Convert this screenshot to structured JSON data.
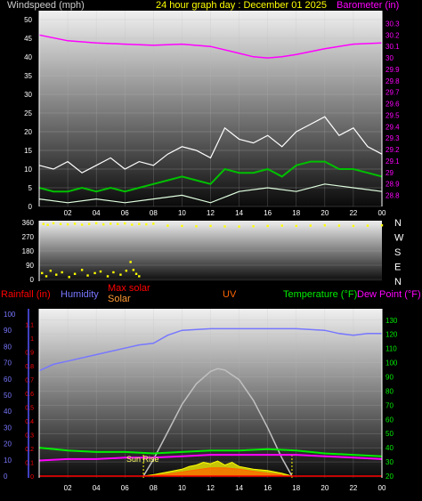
{
  "chart_data": [
    {
      "type": "line",
      "panel": "wind-barometer",
      "title": "24 hour graph day : December 01 2025",
      "ylabel": "Windspeed (mph)",
      "y2label": "Barometer (in)",
      "x_ticks": [
        "02",
        "04",
        "06",
        "08",
        "10",
        "12",
        "14",
        "16",
        "18",
        "20",
        "22",
        "00"
      ],
      "x_range_hours": [
        0,
        24
      ],
      "y_ticks": [
        "0",
        "5",
        "10",
        "15",
        "20",
        "25",
        "30",
        "35",
        "40",
        "45",
        "50"
      ],
      "ylim": [
        0,
        50
      ],
      "y2_ticks": [
        "28.8",
        "28.9",
        "29",
        "29.1",
        "29.2",
        "29.3",
        "29.4",
        "29.5",
        "29.6",
        "29.7",
        "29.8",
        "29.9",
        "30",
        "30.1",
        "30.2",
        "30.3"
      ],
      "y2lim": [
        28.75,
        30.35
      ],
      "series": [
        {
          "name": "Barometer (in)",
          "axis": "right",
          "color": "#ff00ff",
          "x": [
            0,
            2,
            4,
            6,
            8,
            10,
            12,
            14,
            15,
            16,
            17,
            18,
            20,
            22,
            24
          ],
          "values": [
            30.2,
            30.15,
            30.13,
            30.12,
            30.11,
            30.12,
            30.1,
            30.04,
            30.01,
            30.0,
            30.01,
            30.03,
            30.08,
            30.12,
            30.13
          ]
        },
        {
          "color": "#ffffff",
          "role": "gust",
          "x": [
            0,
            1,
            2,
            3,
            4,
            5,
            6,
            7,
            8,
            9,
            10,
            11,
            12,
            13,
            14,
            15,
            16,
            17,
            18,
            19,
            20,
            21,
            22,
            23,
            24
          ],
          "values": [
            11,
            10,
            12,
            9,
            11,
            13,
            10,
            12,
            11,
            14,
            16,
            15,
            13,
            21,
            18,
            17,
            19,
            16,
            20,
            22,
            24,
            19,
            21,
            16,
            14
          ]
        },
        {
          "color": "#00c000",
          "role": "average",
          "x": [
            0,
            1,
            2,
            3,
            4,
            5,
            6,
            7,
            8,
            9,
            10,
            11,
            12,
            13,
            14,
            15,
            16,
            17,
            18,
            19,
            20,
            21,
            22,
            23,
            24
          ],
          "values": [
            5,
            4,
            4,
            5,
            4,
            5,
            4,
            5,
            6,
            7,
            8,
            7,
            6,
            10,
            9,
            9,
            10,
            8,
            11,
            12,
            12,
            10,
            10,
            9,
            8
          ]
        },
        {
          "color": "#e0ffe0",
          "role": "min",
          "x": [
            0,
            2,
            4,
            6,
            8,
            10,
            12,
            14,
            16,
            18,
            20,
            22,
            24
          ],
          "values": [
            2,
            1,
            2,
            1,
            2,
            3,
            1,
            4,
            5,
            4,
            6,
            5,
            4
          ]
        }
      ]
    },
    {
      "type": "scatter",
      "panel": "wind-direction",
      "y_ticks": [
        "360",
        "270",
        "180",
        "90",
        "0"
      ],
      "ylim": [
        0,
        360
      ],
      "compass_labels": [
        "N",
        "W",
        "S",
        "E",
        "N"
      ],
      "series": [
        {
          "color": "#ffff00",
          "x": [
            0.3,
            0.6,
            1,
            1.5,
            2,
            2.5,
            3,
            3.5,
            4,
            4.5,
            5,
            5.5,
            6,
            6.5,
            7,
            7.5,
            8,
            9,
            10,
            11,
            12,
            13,
            14,
            15,
            16,
            17,
            18,
            19,
            20,
            21,
            22,
            23,
            24
          ],
          "values": [
            350,
            345,
            355,
            350,
            348,
            352,
            346,
            350,
            355,
            348,
            352,
            350,
            354,
            346,
            350,
            348,
            352,
            340,
            338,
            336,
            338,
            335,
            334,
            336,
            338,
            340,
            338,
            340,
            342,
            340,
            338,
            340,
            342
          ]
        },
        {
          "color": "#ffff00",
          "role": "scatter-low",
          "x": [
            0.2,
            0.5,
            0.8,
            1.2,
            1.6,
            2.1,
            2.5,
            3,
            3.4,
            3.9,
            4.3,
            4.8,
            5.2,
            5.7,
            6.1,
            6.4,
            6.6,
            6.8,
            7
          ],
          "values": [
            40,
            20,
            55,
            30,
            45,
            15,
            35,
            60,
            25,
            40,
            50,
            20,
            45,
            30,
            55,
            110,
            60,
            35,
            20
          ]
        }
      ]
    },
    {
      "type": "line",
      "panel": "temp-humidity-solar",
      "legend": [
        "Rainfall (in)",
        "Humidity",
        "Max solar",
        "Solar",
        "UV",
        "Temperature (°F)",
        "Dew Point (°F)"
      ],
      "left_ticks": [
        "0",
        "0.1",
        "0.2",
        "0.3",
        "0.4",
        "0.5",
        "0.6",
        "0.7",
        "0.8",
        "0.9",
        "1",
        "1.1"
      ],
      "left_range": [
        0,
        1.15
      ],
      "humidity_ticks": [
        "0",
        "10",
        "20",
        "30",
        "40",
        "50",
        "60",
        "70",
        "80",
        "90",
        "100"
      ],
      "humidity_range": [
        0,
        100
      ],
      "right_ticks": [
        "20",
        "30",
        "40",
        "50",
        "60",
        "70",
        "80",
        "90",
        "100",
        "110",
        "120",
        "130"
      ],
      "right_range": [
        20,
        133
      ],
      "x_ticks": [
        "02",
        "04",
        "06",
        "08",
        "10",
        "12",
        "14",
        "16",
        "18",
        "20",
        "22",
        "00"
      ],
      "annotation": "Sun Rise",
      "sunrise_hour": 7.3,
      "sunset_hour": 17.7,
      "series": [
        {
          "name": "Humidity",
          "axis": "humidity",
          "color": "#7777ff",
          "x": [
            0,
            1,
            2,
            4,
            6,
            7,
            8,
            9,
            10,
            12,
            14,
            16,
            18,
            20,
            21,
            22,
            23,
            24
          ],
          "values": [
            65,
            69,
            71,
            75,
            79,
            81,
            82,
            87,
            90,
            91,
            91,
            91,
            91,
            90,
            88,
            87,
            88,
            88
          ]
        },
        {
          "name": "Max solar",
          "axis": "left",
          "color": "#c0c0c0",
          "x": [
            7.3,
            8,
            9,
            10,
            11,
            12,
            12.5,
            13,
            14,
            15,
            16,
            17,
            17.7
          ],
          "values": [
            0,
            0.12,
            0.32,
            0.52,
            0.67,
            0.76,
            0.78,
            0.77,
            0.7,
            0.55,
            0.35,
            0.13,
            0
          ]
        },
        {
          "name": "Temperature (°F)",
          "axis": "right",
          "color": "#00ee00",
          "x": [
            0,
            2,
            4,
            6,
            8,
            10,
            12,
            14,
            16,
            18,
            20,
            22,
            24
          ],
          "values": [
            40,
            38,
            37,
            37,
            36,
            37,
            38,
            38,
            39,
            38,
            36,
            35,
            34
          ]
        },
        {
          "name": "Dew Point (°F)",
          "axis": "right",
          "color": "#ff00ff",
          "x": [
            0,
            2,
            4,
            6,
            8,
            10,
            12,
            14,
            16,
            18,
            20,
            22,
            24
          ],
          "values": [
            31,
            32,
            32,
            33,
            33,
            34,
            35,
            35,
            35,
            35,
            34,
            33,
            32
          ]
        },
        {
          "name": "Solar",
          "axis": "left",
          "color": "#ffff00",
          "x": [
            7.3,
            8,
            9,
            10,
            10.5,
            11,
            11.5,
            12,
            12.5,
            13,
            13.5,
            14,
            15,
            16,
            17,
            17.7
          ],
          "values": [
            0,
            0.01,
            0.03,
            0.05,
            0.07,
            0.08,
            0.1,
            0.09,
            0.11,
            0.08,
            0.1,
            0.07,
            0.05,
            0.04,
            0.02,
            0
          ]
        },
        {
          "name": "UV",
          "axis": "left",
          "color": "#ff6600",
          "x": [
            8,
            9,
            10,
            11,
            12,
            13,
            14,
            15,
            16,
            17
          ],
          "values": [
            0.005,
            0.015,
            0.03,
            0.045,
            0.06,
            0.06,
            0.05,
            0.035,
            0.02,
            0.01
          ]
        },
        {
          "name": "Rainfall (in)",
          "axis": "left",
          "color": "#ff0000",
          "x": [
            0,
            24
          ],
          "values": [
            0,
            0
          ]
        }
      ]
    }
  ],
  "colors": {
    "wind_label": "#cccccc",
    "title": "#ffff00",
    "barometer": "#ff00ff",
    "direction": "#ffff00",
    "rain": "#ff0000",
    "humidity": "#7777ff",
    "max_solar": "#ff0000",
    "solar": "#ff9933",
    "uv": "#ff6600",
    "temperature": "#00ee00",
    "dew_point": "#ff00ff",
    "axis": "#ffffff"
  }
}
